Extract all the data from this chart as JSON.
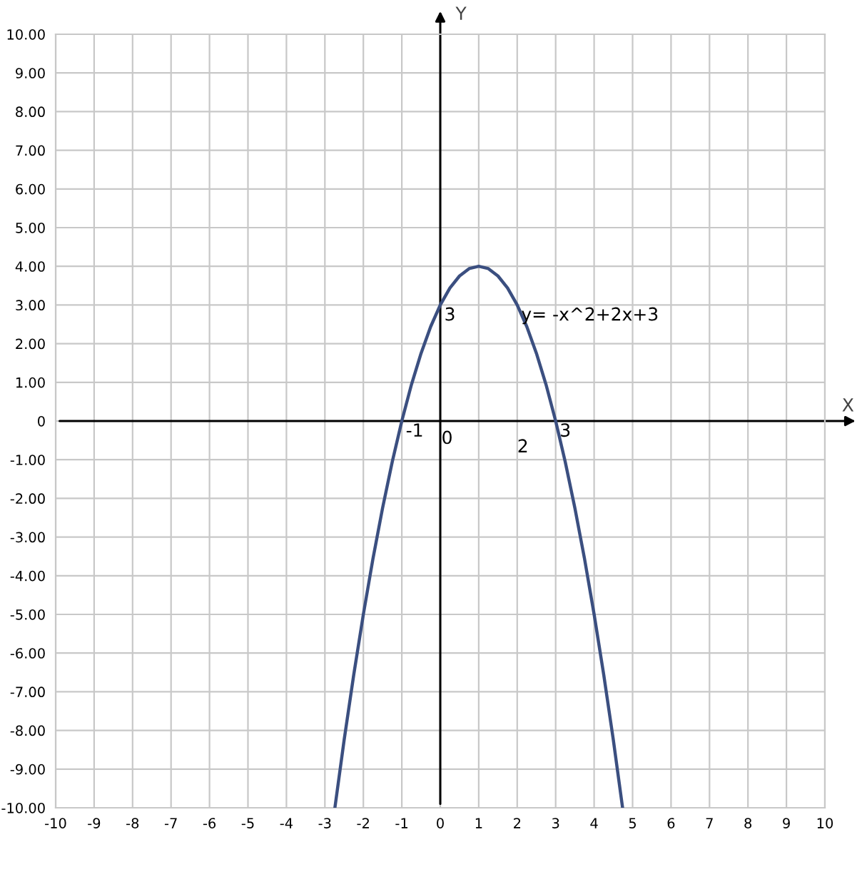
{
  "chart_data": {
    "type": "line",
    "xlabel": "X",
    "ylabel": "Y",
    "x": [
      -2.74,
      -2.5,
      -2.25,
      -2,
      -1.75,
      -1.5,
      -1.25,
      -1,
      -0.75,
      -0.5,
      -0.25,
      0,
      0.25,
      0.5,
      0.75,
      1,
      1.25,
      1.5,
      1.75,
      2,
      2.25,
      2.5,
      2.75,
      3,
      3.25,
      3.5,
      3.75,
      4,
      4.25,
      4.5,
      4.74
    ],
    "series": [
      {
        "color": "#3b4f80",
        "values": [
          -10.0,
          -8.25,
          -6.56,
          -5,
          -3.56,
          -2.25,
          -1.06,
          0,
          0.94,
          1.75,
          2.44,
          3,
          3.44,
          3.75,
          3.94,
          4,
          3.94,
          3.75,
          3.44,
          3,
          2.44,
          1.75,
          0.94,
          0,
          -1.06,
          -2.25,
          -3.56,
          -5,
          -6.56,
          -8.25,
          -10.0
        ]
      }
    ],
    "xlim": [
      -10,
      10
    ],
    "ylim": [
      -10,
      10
    ],
    "xticks": [
      -10,
      -9,
      -8,
      -7,
      -6,
      -5,
      -4,
      -3,
      -2,
      -1,
      0,
      1,
      2,
      3,
      4,
      5,
      6,
      7,
      8,
      9,
      10
    ],
    "yticks": [
      {
        "value": 10,
        "label": "10.00"
      },
      {
        "value": 9,
        "label": "9.00"
      },
      {
        "value": 8,
        "label": "8.00"
      },
      {
        "value": 7,
        "label": "7.00"
      },
      {
        "value": 6,
        "label": "6.00"
      },
      {
        "value": 5,
        "label": "5.00"
      },
      {
        "value": 4,
        "label": "4.00"
      },
      {
        "value": 3,
        "label": "3.00"
      },
      {
        "value": 2,
        "label": "2.00"
      },
      {
        "value": 1,
        "label": "1.00"
      },
      0,
      {
        "value": -1,
        "label": "-1.00"
      },
      {
        "value": -2,
        "label": "-2.00"
      },
      {
        "value": -3,
        "label": "-3.00"
      },
      {
        "value": -4,
        "label": "-4.00"
      },
      {
        "value": -5,
        "label": "-5.00"
      },
      {
        "value": -6,
        "label": "-6.00"
      },
      {
        "value": -7,
        "label": "-7.00"
      },
      {
        "value": -8,
        "label": "-8.00"
      },
      {
        "value": -9,
        "label": "-9.00"
      },
      {
        "value": -10,
        "label": "-10.00"
      }
    ],
    "grid": true,
    "marker": "none",
    "line_style": "solid",
    "annotations": [
      {
        "text": "3",
        "x": 0,
        "y": 3
      },
      {
        "text": "-1",
        "x": -1,
        "y": 0
      },
      "0",
      "2",
      {
        "text": "3",
        "x": 3,
        "y": 0
      },
      {
        "text": "y= -x^2+2x+3",
        "x": 2,
        "y": 3
      }
    ]
  }
}
